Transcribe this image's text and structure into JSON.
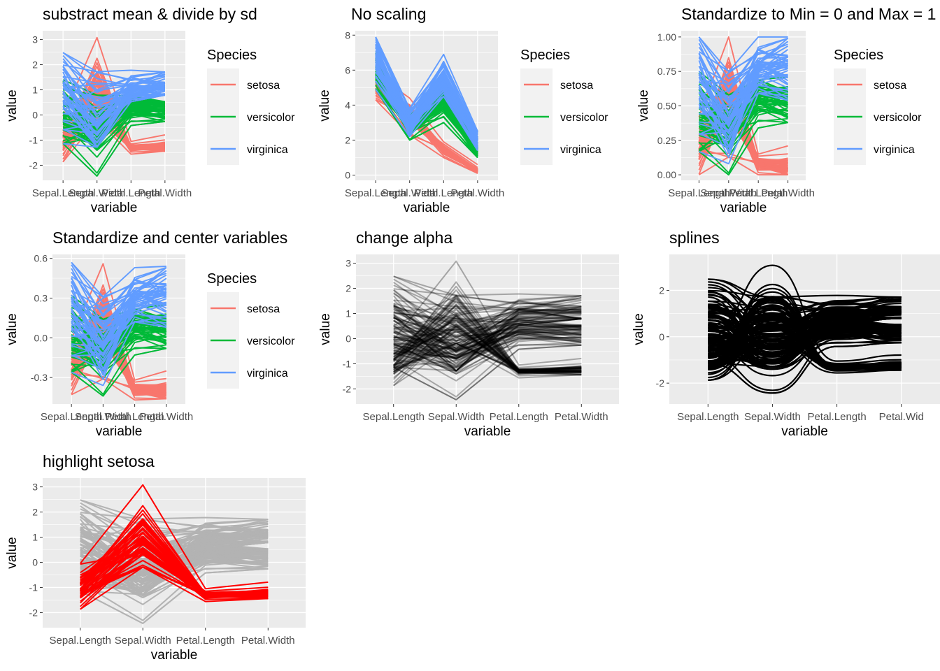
{
  "colors": {
    "setosa": "#F8766D",
    "versicolor": "#00BA38",
    "virginica": "#619CFF",
    "panel_bg": "#EBEBEB",
    "grid": "#FFFFFF",
    "highlight": "#FF0000",
    "faded": "#B3B3B3",
    "mono": "#000000"
  },
  "chart_data": [
    {
      "type": "line",
      "title": "substract mean & divide by sd",
      "xlabel": "variable",
      "ylabel": "value",
      "categories": [
        "Sepal.Length",
        "Sepal.Width",
        "Petal.Length",
        "Petal.Width"
      ],
      "ylim": [
        -2.6,
        3.35
      ],
      "yticks": [
        -2,
        -1,
        0,
        1,
        2,
        3
      ],
      "yticklabels": [
        "-2",
        "-1",
        "0",
        "1",
        "2",
        "3"
      ],
      "color_mode": "species",
      "legend": {
        "title": "Species",
        "entries": [
          "setosa",
          "versicolor",
          "virginica"
        ],
        "position": "right"
      },
      "series": [
        {
          "name": "setosa",
          "mean": [
            -1.01,
            0.85,
            -1.3,
            -1.25
          ],
          "spread": [
            0.45,
            0.9,
            0.08,
            0.14
          ],
          "min": [
            -1.87,
            -0.19,
            -1.56,
            -1.44
          ],
          "max": [
            -0.05,
            3.08,
            -1.05,
            -0.79
          ]
        },
        {
          "name": "versicolor",
          "mean": [
            0.11,
            -0.66,
            0.28,
            0.17
          ],
          "spread": [
            0.6,
            0.7,
            0.27,
            0.26
          ],
          "min": [
            -1.14,
            -2.43,
            -0.42,
            -0.26
          ],
          "max": [
            1.4,
            0.79,
            0.76,
            0.53
          ]
        },
        {
          "name": "virginica",
          "mean": [
            0.9,
            -0.19,
            1.02,
            1.08
          ],
          "spread": [
            0.77,
            0.74,
            0.31,
            0.36
          ],
          "min": [
            -1.14,
            -1.28,
            0.53,
            0.79
          ],
          "max": [
            2.48,
            1.72,
            1.78,
            1.71
          ]
        }
      ]
    },
    {
      "type": "line",
      "title": "No scaling",
      "xlabel": "variable",
      "ylabel": "value",
      "categories": [
        "Sepal.Length",
        "Sepal.Width",
        "Petal.Length",
        "Petal.Width"
      ],
      "ylim": [
        -0.3,
        8.25
      ],
      "yticks": [
        0,
        2,
        4,
        6,
        8
      ],
      "yticklabels": [
        "0",
        "2",
        "4",
        "6",
        "8"
      ],
      "color_mode": "species",
      "legend": {
        "title": "Species",
        "entries": [
          "setosa",
          "versicolor",
          "virginica"
        ],
        "position": "right"
      },
      "series": [
        {
          "name": "setosa",
          "mean": [
            5.0,
            3.43,
            1.46,
            0.25
          ],
          "spread": [
            0.35,
            0.38,
            0.17,
            0.1
          ],
          "min": [
            4.3,
            2.3,
            1.0,
            0.1
          ],
          "max": [
            5.8,
            4.4,
            1.9,
            0.6
          ]
        },
        {
          "name": "versicolor",
          "mean": [
            5.94,
            2.77,
            4.26,
            1.33
          ],
          "spread": [
            0.52,
            0.31,
            0.47,
            0.2
          ],
          "min": [
            4.9,
            2.0,
            3.0,
            1.0
          ],
          "max": [
            7.0,
            3.4,
            5.1,
            1.8
          ]
        },
        {
          "name": "virginica",
          "mean": [
            6.59,
            2.97,
            5.55,
            2.03
          ],
          "spread": [
            0.64,
            0.32,
            0.55,
            0.27
          ],
          "min": [
            4.9,
            2.2,
            4.5,
            1.4
          ],
          "max": [
            7.9,
            3.8,
            6.9,
            2.5
          ]
        }
      ]
    },
    {
      "type": "line",
      "title": "Standardize to Min = 0 and Max = 1",
      "xlabel": "variable",
      "ylabel": "value",
      "categories": [
        "Sepal.Length",
        "Sepal.Width",
        "Petal.Length",
        "Petal.Width"
      ],
      "ylim": [
        -0.04,
        1.045
      ],
      "yticks": [
        0,
        0.25,
        0.5,
        0.75,
        1
      ],
      "yticklabels": [
        "0.00",
        "0.25",
        "0.50",
        "0.75",
        "1.00"
      ],
      "color_mode": "species",
      "legend": {
        "title": "Species",
        "entries": [
          "setosa",
          "versicolor",
          "virginica"
        ],
        "position": "right"
      },
      "series": [
        {
          "name": "setosa",
          "mean": [
            0.2,
            0.6,
            0.08,
            0.06
          ],
          "spread": [
            0.1,
            0.16,
            0.03,
            0.05
          ],
          "min": [
            0.0,
            0.13,
            0.0,
            0.0
          ],
          "max": [
            0.42,
            1.0,
            0.15,
            0.21
          ]
        },
        {
          "name": "versicolor",
          "mean": [
            0.45,
            0.32,
            0.55,
            0.51
          ],
          "spread": [
            0.14,
            0.13,
            0.08,
            0.08
          ],
          "min": [
            0.17,
            0.0,
            0.34,
            0.38
          ],
          "max": [
            0.75,
            0.58,
            0.69,
            0.71
          ]
        },
        {
          "name": "virginica",
          "mean": [
            0.64,
            0.41,
            0.77,
            0.8
          ],
          "spread": [
            0.18,
            0.13,
            0.09,
            0.11
          ],
          "min": [
            0.17,
            0.08,
            0.59,
            0.54
          ],
          "max": [
            1.0,
            0.75,
            1.0,
            1.0
          ]
        }
      ]
    },
    {
      "type": "line",
      "title": "Standardize and center variables",
      "xlabel": "variable",
      "ylabel": "value",
      "categories": [
        "Sepal.Length",
        "Sepal.Width",
        "Petal.Length",
        "Petal.Width"
      ],
      "ylim": [
        -0.5,
        0.63
      ],
      "yticks": [
        -0.3,
        0,
        0.3,
        0.6
      ],
      "yticklabels": [
        "-0.3",
        "0.0",
        "0.3",
        "0.6"
      ],
      "color_mode": "species",
      "legend": {
        "title": "Species",
        "entries": [
          "setosa",
          "versicolor",
          "virginica"
        ],
        "position": "right"
      },
      "series": [
        {
          "name": "setosa",
          "mean": [
            -0.23,
            0.15,
            -0.39,
            -0.4
          ],
          "spread": [
            0.1,
            0.16,
            0.03,
            0.05
          ],
          "min": [
            -0.43,
            -0.31,
            -0.47,
            -0.46
          ],
          "max": [
            -0.01,
            0.56,
            -0.32,
            -0.25
          ]
        },
        {
          "name": "versicolor",
          "mean": [
            0.02,
            -0.12,
            0.08,
            0.05
          ],
          "spread": [
            0.14,
            0.13,
            0.08,
            0.08
          ],
          "min": [
            -0.26,
            -0.44,
            -0.13,
            -0.08
          ],
          "max": [
            0.32,
            0.14,
            0.22,
            0.25
          ]
        },
        {
          "name": "virginica",
          "mean": [
            0.21,
            -0.03,
            0.3,
            0.34
          ],
          "spread": [
            0.18,
            0.13,
            0.09,
            0.11
          ],
          "min": [
            -0.26,
            -0.36,
            0.12,
            0.08
          ],
          "max": [
            0.57,
            0.31,
            0.53,
            0.54
          ]
        }
      ]
    },
    {
      "type": "line",
      "title": "change alpha",
      "xlabel": "variable",
      "ylabel": "value",
      "categories": [
        "Sepal.Length",
        "Sepal.Width",
        "Petal.Length",
        "Petal.Width"
      ],
      "ylim": [
        -2.6,
        3.35
      ],
      "yticks": [
        -2,
        -1,
        0,
        1,
        2,
        3
      ],
      "yticklabels": [
        "-2",
        "-1",
        "0",
        "1",
        "2",
        "3"
      ],
      "color_mode": "alpha",
      "series": [
        {
          "name": "setosa",
          "mean": [
            -1.01,
            0.85,
            -1.3,
            -1.25
          ],
          "spread": [
            0.45,
            0.9,
            0.08,
            0.14
          ],
          "min": [
            -1.87,
            -0.19,
            -1.56,
            -1.44
          ],
          "max": [
            -0.05,
            3.08,
            -1.05,
            -0.79
          ]
        },
        {
          "name": "versicolor",
          "mean": [
            0.11,
            -0.66,
            0.28,
            0.17
          ],
          "spread": [
            0.6,
            0.7,
            0.27,
            0.26
          ],
          "min": [
            -1.14,
            -2.43,
            -0.42,
            -0.26
          ],
          "max": [
            1.4,
            0.79,
            0.76,
            0.53
          ]
        },
        {
          "name": "virginica",
          "mean": [
            0.9,
            -0.19,
            1.02,
            1.08
          ],
          "spread": [
            0.77,
            0.74,
            0.31,
            0.36
          ],
          "min": [
            -1.14,
            -1.28,
            0.53,
            0.79
          ],
          "max": [
            2.48,
            1.72,
            1.78,
            1.71
          ]
        }
      ]
    },
    {
      "type": "line",
      "title": "splines",
      "xlabel": "variable",
      "ylabel": "value",
      "categories": [
        "Sepal.Length",
        "Sepal.Width",
        "Petal.Length",
        "Petal.Width"
      ],
      "xlabels_visible": [
        "Sepal.Length",
        "Sepal.Width",
        "Petal.Length",
        "Petal.Wid"
      ],
      "ylim": [
        -2.9,
        3.55
      ],
      "yticks": [
        -2,
        0,
        2
      ],
      "yticklabels": [
        "-2",
        "0",
        "2"
      ],
      "color_mode": "spline",
      "series": [
        {
          "name": "setosa",
          "mean": [
            -1.01,
            0.85,
            -1.3,
            -1.25
          ],
          "spread": [
            0.45,
            0.9,
            0.08,
            0.14
          ],
          "min": [
            -1.87,
            -0.19,
            -1.56,
            -1.44
          ],
          "max": [
            -0.05,
            3.08,
            -1.05,
            -0.79
          ]
        },
        {
          "name": "versicolor",
          "mean": [
            0.11,
            -0.66,
            0.28,
            0.17
          ],
          "spread": [
            0.6,
            0.7,
            0.27,
            0.26
          ],
          "min": [
            -1.14,
            -2.43,
            -0.42,
            -0.26
          ],
          "max": [
            1.4,
            0.79,
            0.76,
            0.53
          ]
        },
        {
          "name": "virginica",
          "mean": [
            0.9,
            -0.19,
            1.02,
            1.08
          ],
          "spread": [
            0.77,
            0.74,
            0.31,
            0.36
          ],
          "min": [
            -1.14,
            -1.28,
            0.53,
            0.79
          ],
          "max": [
            2.48,
            1.72,
            1.78,
            1.71
          ]
        }
      ]
    },
    {
      "type": "line",
      "title": "highlight setosa",
      "xlabel": "variable",
      "ylabel": "value",
      "categories": [
        "Sepal.Length",
        "Sepal.Width",
        "Petal.Length",
        "Petal.Width"
      ],
      "ylim": [
        -2.6,
        3.35
      ],
      "yticks": [
        -2,
        -1,
        0,
        1,
        2,
        3
      ],
      "yticklabels": [
        "-2",
        "-1",
        "0",
        "1",
        "2",
        "3"
      ],
      "color_mode": "highlight",
      "series": [
        {
          "name": "setosa",
          "mean": [
            -1.01,
            0.85,
            -1.3,
            -1.25
          ],
          "spread": [
            0.45,
            0.9,
            0.08,
            0.14
          ],
          "min": [
            -1.87,
            -0.19,
            -1.56,
            -1.44
          ],
          "max": [
            -0.05,
            3.08,
            -1.05,
            -0.79
          ]
        },
        {
          "name": "versicolor",
          "mean": [
            0.11,
            -0.66,
            0.28,
            0.17
          ],
          "spread": [
            0.6,
            0.7,
            0.27,
            0.26
          ],
          "min": [
            -1.14,
            -2.43,
            -0.42,
            -0.26
          ],
          "max": [
            1.4,
            0.79,
            0.76,
            0.53
          ]
        },
        {
          "name": "virginica",
          "mean": [
            0.9,
            -0.19,
            1.02,
            1.08
          ],
          "spread": [
            0.77,
            0.74,
            0.31,
            0.36
          ],
          "min": [
            -1.14,
            -1.28,
            0.53,
            0.79
          ],
          "max": [
            2.48,
            1.72,
            1.78,
            1.71
          ]
        }
      ]
    }
  ]
}
